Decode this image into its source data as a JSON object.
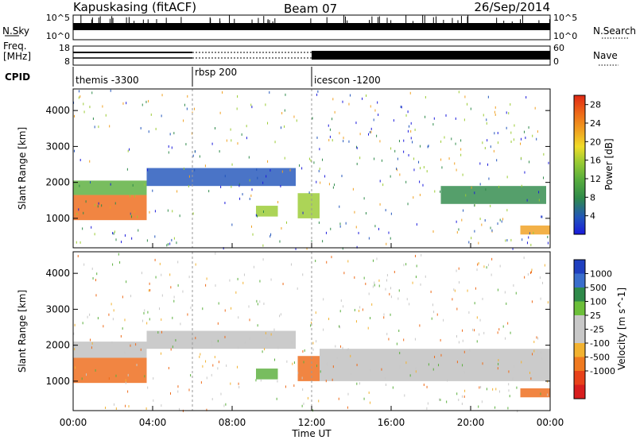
{
  "header": {
    "title": "Kapuskasing (fitACF)",
    "beam": "Beam 07",
    "date": "26/Sep/2014"
  },
  "noise_panel": {
    "left_label": "N.Sky",
    "right_label": "N.Search",
    "left_ticks": [
      "10^5",
      "10^0"
    ],
    "right_ticks": [
      "10^5",
      "10^0"
    ]
  },
  "freq_panel": {
    "left_label_line1": "Freq.",
    "left_label_line2": "[MHz]",
    "right_label": "Nave",
    "left_ticks": [
      "18",
      "8"
    ],
    "right_ticks": [
      "60",
      "0"
    ]
  },
  "cpid_panel": {
    "label": "CPID",
    "segments": [
      "themis -3300",
      "rbsp 200",
      "icescon -1200"
    ],
    "segment_starts_hours": [
      0,
      6,
      12
    ]
  },
  "colors": {
    "power_scale": [
      "#1a1adc",
      "#2255bb",
      "#2f8a4a",
      "#5aaf3c",
      "#9acb32",
      "#f0dc28",
      "#f0a020",
      "#ee6a18",
      "#e02814"
    ],
    "velocity_scale": [
      "#1f3fbf",
      "#3a6ecc",
      "#2f8a4a",
      "#6cbf3a",
      "#c8c8c8",
      "#c8c8c8",
      "#f2b230",
      "#f07a20",
      "#e8421a",
      "#d81e1e"
    ],
    "ground_scatter": "#c0c0c0"
  },
  "chart_data": [
    {
      "type": "heatmap",
      "title": "Power",
      "xlabel": "Time UT",
      "ylabel": "Slant Range [km]",
      "x_ticks": [
        "00:00",
        "04:00",
        "08:00",
        "12:00",
        "16:00",
        "20:00",
        "00:00"
      ],
      "y_ticks": [
        1000,
        2000,
        3000,
        4000
      ],
      "ylim": [
        180,
        4600
      ],
      "xlim_hours": [
        0,
        24
      ],
      "colorbar": {
        "label": "Power [dB]",
        "ticks": [
          4,
          8,
          12,
          16,
          20,
          24,
          28
        ],
        "range": [
          0,
          30
        ]
      },
      "regions": [
        {
          "t0": 0.0,
          "t1": 3.7,
          "r0": 950,
          "r1": 1650,
          "value": 25
        },
        {
          "t0": 0.0,
          "t1": 3.7,
          "r0": 1650,
          "r1": 2050,
          "value": 10
        },
        {
          "t0": 3.7,
          "t1": 11.2,
          "r0": 1900,
          "r1": 2400,
          "value": 4
        },
        {
          "t0": 9.2,
          "t1": 10.3,
          "r0": 1050,
          "r1": 1350,
          "value": 14
        },
        {
          "t0": 11.3,
          "t1": 12.4,
          "r0": 1000,
          "r1": 1700,
          "value": 16
        },
        {
          "t0": 18.5,
          "t1": 23.8,
          "r0": 1400,
          "r1": 1900,
          "value": 9
        },
        {
          "t0": 22.5,
          "t1": 24.0,
          "r0": 550,
          "r1": 800,
          "value": 22
        }
      ]
    },
    {
      "type": "heatmap",
      "title": "Velocity",
      "xlabel": "Time UT",
      "ylabel": "Slant Range [km]",
      "x_ticks": [
        "00:00",
        "04:00",
        "08:00",
        "12:00",
        "16:00",
        "20:00",
        "00:00"
      ],
      "y_ticks": [
        1000,
        2000,
        3000,
        4000
      ],
      "ylim": [
        180,
        4600
      ],
      "xlim_hours": [
        0,
        24
      ],
      "colorbar": {
        "label": "Velocity [m s^-1]",
        "ticks": [
          "1000",
          "500",
          "100",
          "25",
          "-25",
          "-100",
          "-500",
          "-1000"
        ]
      },
      "regions": [
        {
          "t0": 0.0,
          "t1": 3.7,
          "r0": 950,
          "r1": 1650,
          "value": -400
        },
        {
          "t0": 0.0,
          "t1": 3.7,
          "r0": 1650,
          "r1": 2100,
          "value": 0
        },
        {
          "t0": 3.7,
          "t1": 11.2,
          "r0": 1900,
          "r1": 2400,
          "value": 0
        },
        {
          "t0": 9.2,
          "t1": 10.3,
          "r0": 1050,
          "r1": 1350,
          "value": 80
        },
        {
          "t0": 11.3,
          "t1": 12.4,
          "r0": 1000,
          "r1": 1700,
          "value": -200
        },
        {
          "t0": 12.4,
          "t1": 24.0,
          "r0": 1000,
          "r1": 1900,
          "value": 0
        },
        {
          "t0": 22.5,
          "t1": 24.0,
          "r0": 550,
          "r1": 800,
          "value": -300
        }
      ]
    }
  ]
}
